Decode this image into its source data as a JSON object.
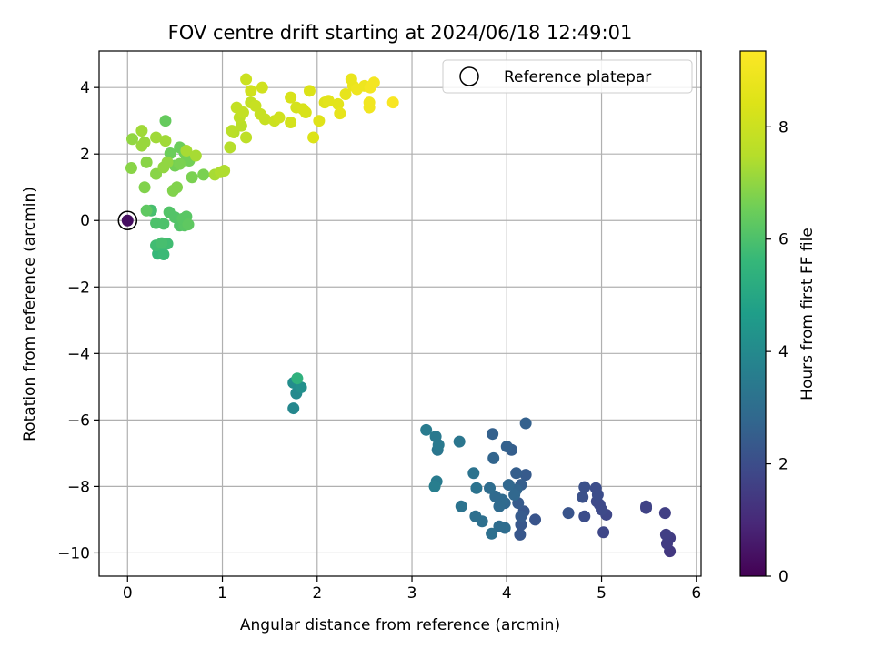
{
  "chart_data": {
    "type": "scatter",
    "title": "FOV centre drift starting at 2024/06/18 12:49:01",
    "xlabel": "Angular distance from reference (arcmin)",
    "ylabel": "Rotation from reference (arcmin)",
    "colorbar_label": "Hours from first FF file",
    "xlim": [
      -0.3,
      6.05
    ],
    "ylim": [
      -10.7,
      5.1
    ],
    "x_ticks": [
      0,
      1,
      2,
      3,
      4,
      5,
      6
    ],
    "y_ticks": [
      -10,
      -8,
      -6,
      -4,
      -2,
      0,
      2,
      4
    ],
    "colorbar_range": [
      0,
      9.35
    ],
    "colorbar_ticks": [
      0,
      2,
      4,
      6,
      8
    ],
    "colormap": "viridis",
    "grid": true,
    "legend": {
      "placement": "top-right",
      "entries": [
        {
          "label": "Reference platepar",
          "marker": "open-circle"
        }
      ]
    },
    "reference_point": {
      "x": 0,
      "y": 0,
      "hours": 0.3
    },
    "series": [
      {
        "points": [
          [
            5.72,
            -9.95,
            1.4
          ],
          [
            5.69,
            -9.72,
            1.5
          ],
          [
            5.72,
            -9.55,
            1.5
          ],
          [
            5.68,
            -9.45,
            1.6
          ],
          [
            5.67,
            -8.8,
            1.6
          ],
          [
            5.47,
            -8.65,
            1.7
          ],
          [
            5.47,
            -8.6,
            1.7
          ],
          [
            5.02,
            -9.38,
            1.8
          ],
          [
            5.05,
            -8.85,
            1.8
          ],
          [
            5.0,
            -8.7,
            1.9
          ],
          [
            4.98,
            -8.55,
            1.9
          ],
          [
            4.95,
            -8.45,
            1.9
          ],
          [
            4.96,
            -8.25,
            2.0
          ],
          [
            4.94,
            -8.05,
            2.0
          ],
          [
            4.82,
            -8.9,
            2.0
          ],
          [
            4.8,
            -8.32,
            2.1
          ],
          [
            4.82,
            -8.02,
            2.1
          ],
          [
            4.65,
            -8.8,
            2.2
          ],
          [
            4.3,
            -9.0,
            2.2
          ],
          [
            4.18,
            -8.75,
            2.3
          ],
          [
            4.14,
            -9.45,
            2.3
          ],
          [
            4.15,
            -9.15,
            2.3
          ],
          [
            4.15,
            -8.9,
            2.4
          ],
          [
            4.12,
            -8.5,
            2.4
          ],
          [
            4.2,
            -7.65,
            2.4
          ],
          [
            4.15,
            -7.95,
            2.5
          ],
          [
            4.1,
            -7.6,
            2.5
          ],
          [
            4.05,
            -6.9,
            2.5
          ],
          [
            4.0,
            -6.8,
            2.6
          ],
          [
            4.2,
            -6.1,
            2.6
          ],
          [
            3.85,
            -6.42,
            2.6
          ],
          [
            3.86,
            -7.15,
            2.7
          ],
          [
            4.1,
            -8.1,
            2.7
          ],
          [
            4.08,
            -8.25,
            2.8
          ],
          [
            4.02,
            -7.95,
            2.8
          ],
          [
            3.98,
            -8.5,
            2.8
          ],
          [
            3.95,
            -8.4,
            2.9
          ],
          [
            3.92,
            -8.6,
            2.9
          ],
          [
            3.88,
            -8.3,
            2.9
          ],
          [
            3.82,
            -8.05,
            3.0
          ],
          [
            3.98,
            -9.25,
            3.0
          ],
          [
            3.92,
            -9.2,
            3.0
          ],
          [
            3.84,
            -9.42,
            3.1
          ],
          [
            3.74,
            -9.05,
            3.1
          ],
          [
            3.67,
            -8.9,
            3.1
          ],
          [
            3.68,
            -8.05,
            3.2
          ],
          [
            3.65,
            -7.6,
            3.2
          ],
          [
            3.52,
            -8.6,
            3.2
          ],
          [
            3.5,
            -6.65,
            3.3
          ],
          [
            3.27,
            -6.9,
            3.3
          ],
          [
            3.28,
            -6.75,
            3.4
          ],
          [
            3.25,
            -6.5,
            3.4
          ],
          [
            3.15,
            -6.3,
            3.5
          ],
          [
            3.26,
            -7.85,
            3.5
          ],
          [
            3.24,
            -8.0,
            3.6
          ],
          [
            1.75,
            -5.65,
            3.9
          ],
          [
            1.78,
            -5.2,
            4.0
          ],
          [
            1.75,
            -4.88,
            4.1
          ],
          [
            1.83,
            -5.02,
            4.2
          ],
          [
            1.79,
            -4.75,
            5.4
          ],
          [
            0.32,
            -1.0,
            5.6
          ],
          [
            0.38,
            -1.02,
            5.7
          ],
          [
            0.3,
            -0.75,
            5.8
          ],
          [
            0.42,
            -0.7,
            5.8
          ],
          [
            0.36,
            -0.68,
            5.9
          ],
          [
            0.25,
            0.3,
            5.9
          ],
          [
            0.3,
            -0.08,
            6.0
          ],
          [
            0.38,
            -0.1,
            6.0
          ],
          [
            0.44,
            0.25,
            6.1
          ],
          [
            0.5,
            0.1,
            6.1
          ],
          [
            0.55,
            -0.15,
            6.1
          ],
          [
            0.6,
            -0.15,
            6.2
          ],
          [
            0.62,
            0.12,
            6.2
          ],
          [
            0.58,
            0.05,
            6.2
          ],
          [
            0.64,
            -0.12,
            6.3
          ],
          [
            0.2,
            0.3,
            6.3
          ],
          [
            0.4,
            3.0,
            6.4
          ],
          [
            0.45,
            2.02,
            6.5
          ],
          [
            0.55,
            2.2,
            6.5
          ],
          [
            0.6,
            2.05,
            6.5
          ],
          [
            0.62,
            1.95,
            6.6
          ],
          [
            0.65,
            1.8,
            6.6
          ],
          [
            0.5,
            1.65,
            6.6
          ],
          [
            0.55,
            1.7,
            6.7
          ],
          [
            0.68,
            1.3,
            6.7
          ],
          [
            0.8,
            1.38,
            6.7
          ],
          [
            0.52,
            1.0,
            6.8
          ],
          [
            0.48,
            0.9,
            6.8
          ],
          [
            0.18,
            1.0,
            6.8
          ],
          [
            0.04,
            1.58,
            6.9
          ],
          [
            0.2,
            1.75,
            6.9
          ],
          [
            0.3,
            1.4,
            6.9
          ],
          [
            0.38,
            1.6,
            7.0
          ],
          [
            0.42,
            1.75,
            7.0
          ],
          [
            0.05,
            2.45,
            7.0
          ],
          [
            0.15,
            2.25,
            7.1
          ],
          [
            0.18,
            2.35,
            7.1
          ],
          [
            0.3,
            2.5,
            7.2
          ],
          [
            0.15,
            2.7,
            7.2
          ],
          [
            0.4,
            2.4,
            7.2
          ],
          [
            0.62,
            2.1,
            7.3
          ],
          [
            0.72,
            1.95,
            7.3
          ],
          [
            0.92,
            1.38,
            7.3
          ],
          [
            0.98,
            1.45,
            7.4
          ],
          [
            1.02,
            1.5,
            7.4
          ],
          [
            1.08,
            2.2,
            7.5
          ],
          [
            1.12,
            2.65,
            7.5
          ],
          [
            1.1,
            2.7,
            7.6
          ],
          [
            1.2,
            2.85,
            7.6
          ],
          [
            1.25,
            2.5,
            7.7
          ],
          [
            1.18,
            3.1,
            7.7
          ],
          [
            1.22,
            3.25,
            7.8
          ],
          [
            1.15,
            3.4,
            7.8
          ],
          [
            1.3,
            3.55,
            7.8
          ],
          [
            1.35,
            3.45,
            7.9
          ],
          [
            1.4,
            3.2,
            7.9
          ],
          [
            1.45,
            3.05,
            7.9
          ],
          [
            1.55,
            3.0,
            8.0
          ],
          [
            1.25,
            4.25,
            8.0
          ],
          [
            1.3,
            3.9,
            8.1
          ],
          [
            1.42,
            4.0,
            8.1
          ],
          [
            1.6,
            3.1,
            8.1
          ],
          [
            1.72,
            2.95,
            8.2
          ],
          [
            1.78,
            3.4,
            8.2
          ],
          [
            1.72,
            3.7,
            8.3
          ],
          [
            1.88,
            3.25,
            8.3
          ],
          [
            1.85,
            3.35,
            8.3
          ],
          [
            1.92,
            3.9,
            8.4
          ],
          [
            1.96,
            2.5,
            8.4
          ],
          [
            2.02,
            3.0,
            8.5
          ],
          [
            2.08,
            3.55,
            8.5
          ],
          [
            2.12,
            3.6,
            8.6
          ],
          [
            2.22,
            3.5,
            8.6
          ],
          [
            2.24,
            3.22,
            8.7
          ],
          [
            2.3,
            3.8,
            8.7
          ],
          [
            2.36,
            4.25,
            8.8
          ],
          [
            2.38,
            4.05,
            8.8
          ],
          [
            2.42,
            3.95,
            8.9
          ],
          [
            2.5,
            4.05,
            8.9
          ],
          [
            2.55,
            3.4,
            9.0
          ],
          [
            2.55,
            3.55,
            9.0
          ],
          [
            2.56,
            4.0,
            9.1
          ],
          [
            2.6,
            4.15,
            9.1
          ],
          [
            2.8,
            3.55,
            9.2
          ]
        ]
      }
    ]
  }
}
